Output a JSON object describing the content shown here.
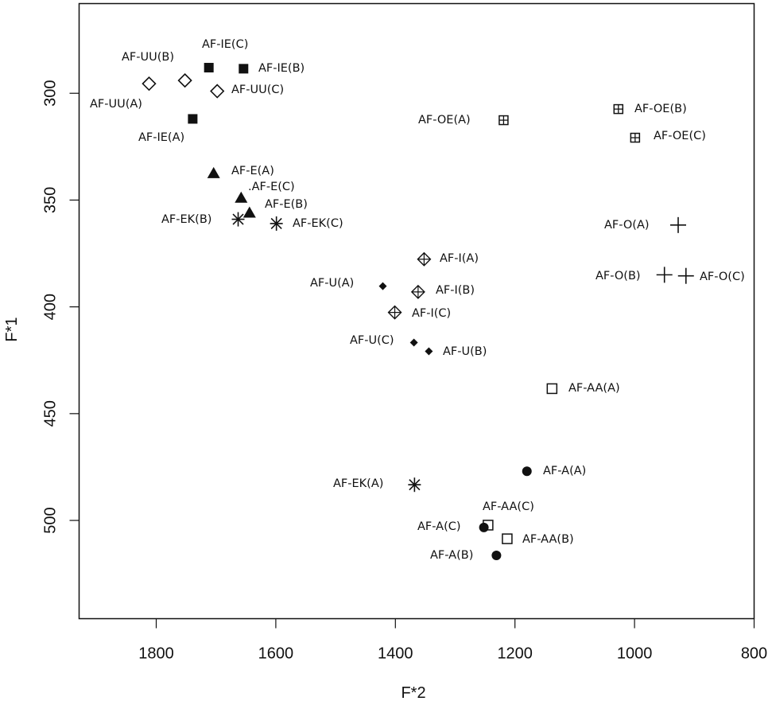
{
  "chart_data": {
    "type": "scatter",
    "title": "",
    "xlabel": "F*2",
    "ylabel": "F*1",
    "xlim": [
      1929,
      800
    ],
    "ylim": [
      258,
      546
    ],
    "x_reversed": true,
    "y_reversed": true,
    "grid": false,
    "legend": "none",
    "xticks": [
      1800,
      1600,
      1400,
      1200,
      1000,
      800
    ],
    "xtick_labels": [
      "1800",
      "1600",
      "1400",
      "1200",
      "1000",
      "800"
    ],
    "yticks": [
      300,
      350,
      400,
      450,
      500
    ],
    "ytick_labels": [
      "300",
      "350",
      "400",
      "450",
      "500"
    ],
    "points": [
      {
        "label": "AF-UU(A)",
        "marker": "diamond-open",
        "x": 1812,
        "y": 295.5
      },
      {
        "label": "AF-UU(B)",
        "marker": "diamond-open",
        "x": 1752,
        "y": 294
      },
      {
        "label": "AF-UU(C)",
        "marker": "diamond-open",
        "x": 1698,
        "y": 299
      },
      {
        "label": "AF-IE(A)",
        "marker": "square-filled",
        "x": 1739,
        "y": 312
      },
      {
        "label": "AF-IE(B)",
        "marker": "square-filled",
        "x": 1654,
        "y": 288.5
      },
      {
        "label": "AF-IE(C)",
        "marker": "square-filled",
        "x": 1712,
        "y": 288
      },
      {
        "label": "AF-E(A)",
        "marker": "triangle-filled",
        "x": 1704,
        "y": 337.5
      },
      {
        "label": "AF-E(B)",
        "marker": "triangle-filled",
        "x": 1644,
        "y": 356
      },
      {
        "label": ".AF-E(C)",
        "marker": "triangle-filled",
        "x": 1658,
        "y": 349
      },
      {
        "label": "AF-EK(A)",
        "marker": "asterisk",
        "x": 1368,
        "y": 483.3
      },
      {
        "label": "AF-EK(B)",
        "marker": "asterisk",
        "x": 1663,
        "y": 359
      },
      {
        "label": "AF-EK(C)",
        "marker": "asterisk",
        "x": 1599,
        "y": 361
      },
      {
        "label": "AF-OE(A)",
        "marker": "square-plus",
        "x": 1219,
        "y": 312.6
      },
      {
        "label": "AF-OE(B)",
        "marker": "square-plus",
        "x": 1027,
        "y": 307.4
      },
      {
        "label": "AF-OE(C)",
        "marker": "square-plus",
        "x": 999,
        "y": 320.8
      },
      {
        "label": "AF-O(A)",
        "marker": "plus",
        "x": 927,
        "y": 361.7
      },
      {
        "label": "AF-O(B)",
        "marker": "plus",
        "x": 950,
        "y": 385
      },
      {
        "label": "AF-O(C)",
        "marker": "plus",
        "x": 914,
        "y": 385.5
      },
      {
        "label": "AF-I(A)",
        "marker": "diamond-plus",
        "x": 1352,
        "y": 377.7
      },
      {
        "label": "AF-I(B)",
        "marker": "diamond-plus",
        "x": 1362,
        "y": 393
      },
      {
        "label": "AF-I(C)",
        "marker": "diamond-plus",
        "x": 1401,
        "y": 402.6
      },
      {
        "label": "AF-U(A)",
        "marker": "diamond-filled",
        "x": 1421,
        "y": 390.3
      },
      {
        "label": "AF-U(B)",
        "marker": "diamond-filled",
        "x": 1344,
        "y": 420.8
      },
      {
        "label": "AF-U(C)",
        "marker": "diamond-filled",
        "x": 1369,
        "y": 416.7
      },
      {
        "label": "AF-AA(A)",
        "marker": "square-open",
        "x": 1138,
        "y": 438.3
      },
      {
        "label": "AF-AA(B)",
        "marker": "square-open",
        "x": 1213,
        "y": 508.6
      },
      {
        "label": "AF-AA(C)",
        "marker": "square-open",
        "x": 1245,
        "y": 502.2
      },
      {
        "label": "AF-A(A)",
        "marker": "circle-filled",
        "x": 1180,
        "y": 477
      },
      {
        "label": "AF-A(B)",
        "marker": "circle-filled",
        "x": 1231,
        "y": 516.4
      },
      {
        "label": "AF-A(C)",
        "marker": "circle-filled",
        "x": 1252,
        "y": 503.3
      }
    ]
  }
}
